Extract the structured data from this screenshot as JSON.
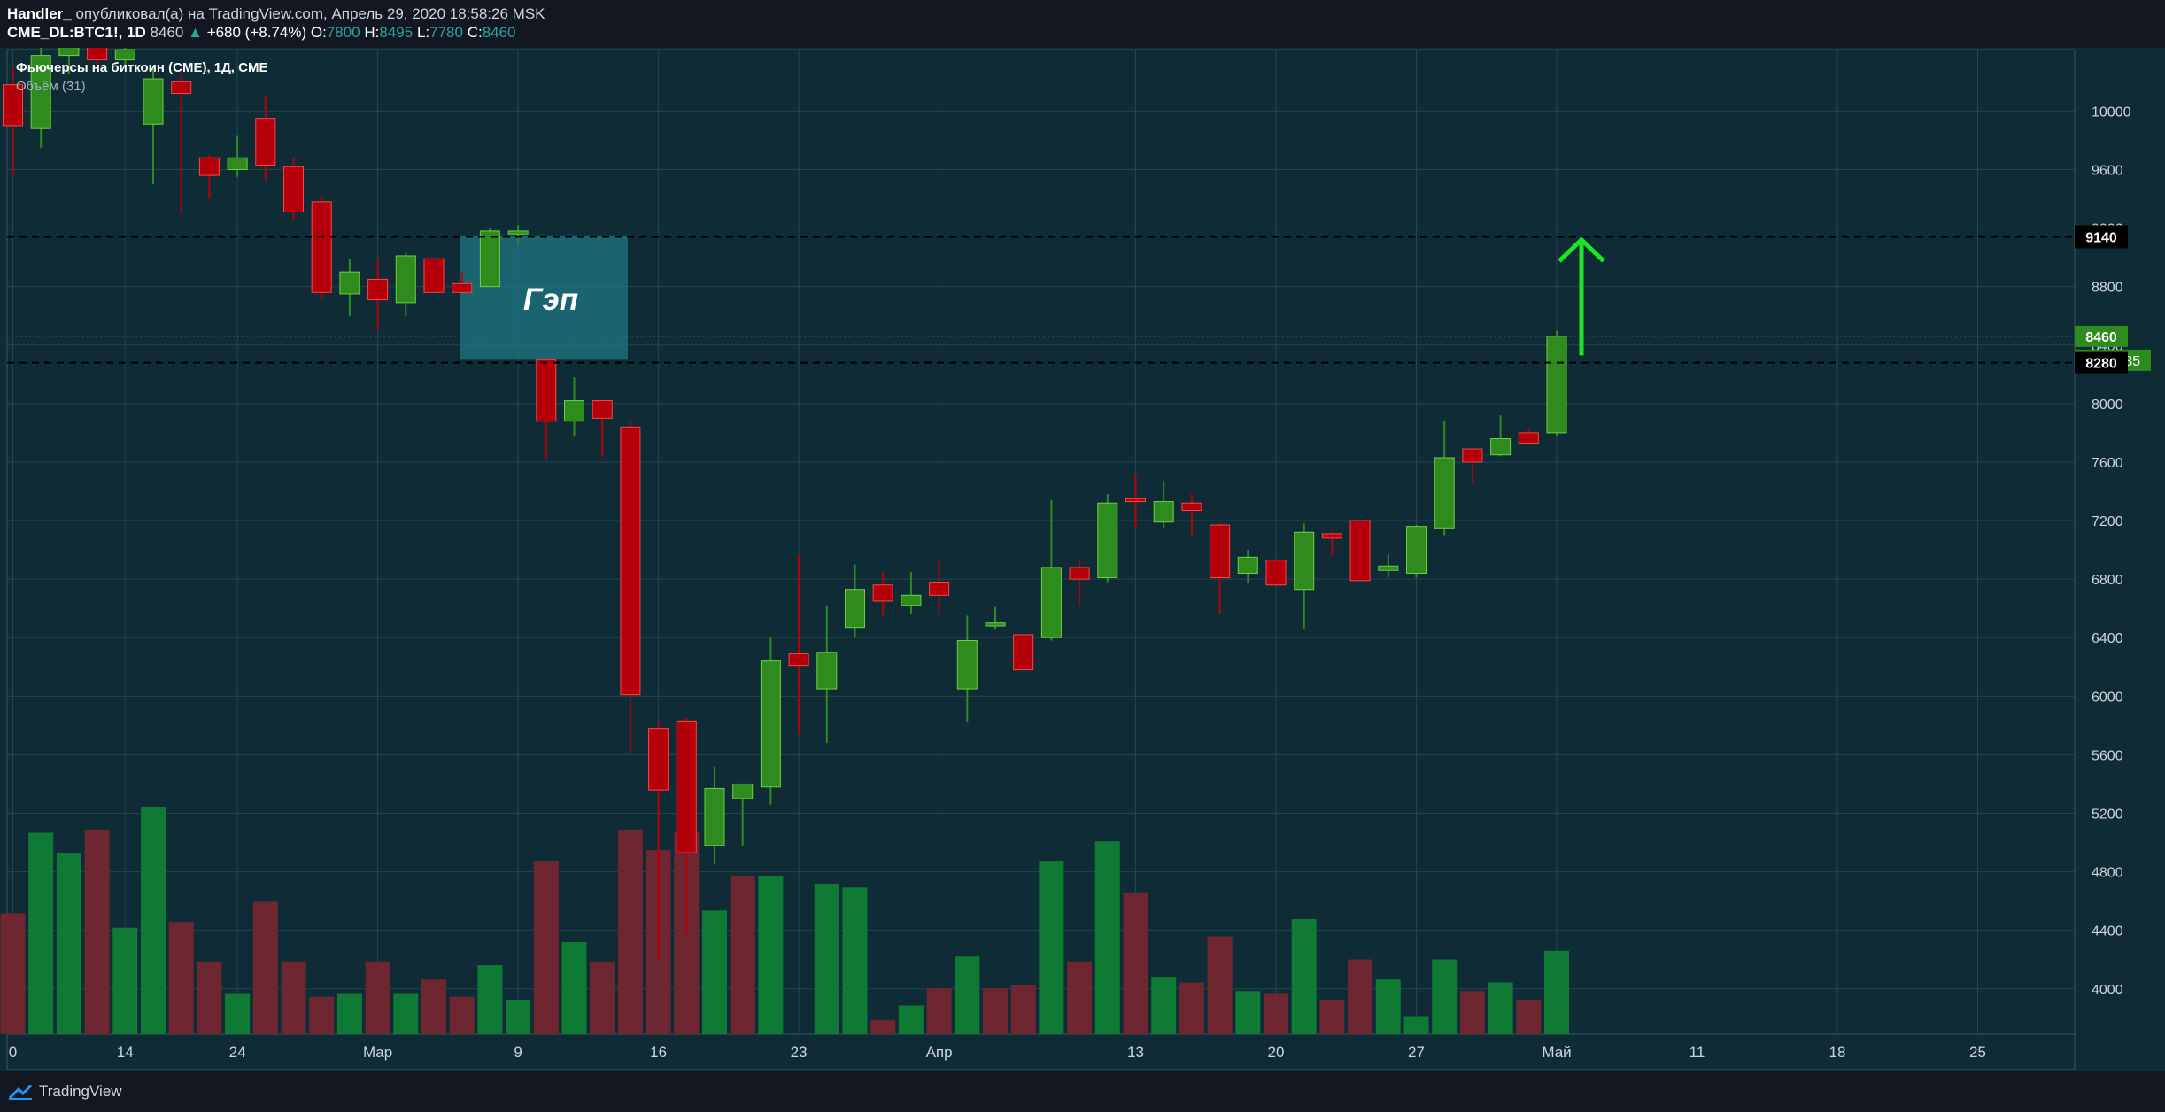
{
  "header": {
    "author": "Handler_",
    "published_text": " опубликовал(а) на TradingView.com, Апрель 29, 2020 18:58:26 MSK",
    "symbol": "CME_DL:BTC1!, 1D",
    "last": "8460",
    "change_arrow": "▲",
    "change": "+680 (+8.74%)",
    "o_label": "O:",
    "o_value": "7800",
    "h_label": "H:",
    "h_value": "8495",
    "l_label": "L:",
    "l_value": "7780",
    "c_label": "C:",
    "c_value": "8460"
  },
  "legend": {
    "main": "Фьючерсы на биткоин (CME), 1Д, CME",
    "volume": "Объём (31)"
  },
  "annotation": {
    "gap_label": "Гэп"
  },
  "price_tags": {
    "level_high": "9140",
    "current": "8460",
    "countdown": "05:01:35",
    "level_low": "8280"
  },
  "footer": {
    "brand": "TradingView"
  },
  "colors": {
    "background": "#0f2c36",
    "up": "#26a69a",
    "candle_up": "#2e8b1e",
    "candle_down": "#b5000b",
    "volume_up": "#0e7a34",
    "volume_down": "#6e2630",
    "arrow": "#1ae625",
    "gap_box": "#1f7a85"
  },
  "chart_data": {
    "type": "candlestick",
    "title": "Фьючерсы на биткоин (CME), 1Д, CME",
    "x_ticks": [
      "0",
      "14",
      "24",
      "Мар",
      "9",
      "16",
      "23",
      "Апр",
      "13",
      "20",
      "27",
      "Май",
      "11",
      "18",
      "25"
    ],
    "y_ticks": [
      4000,
      4400,
      4800,
      5200,
      5600,
      6000,
      6400,
      6800,
      7200,
      7600,
      8000,
      8400,
      8800,
      9200,
      9600,
      10000
    ],
    "ylim": [
      3690,
      10420
    ],
    "candles": [
      {
        "o": 10180,
        "h": 10300,
        "l": 9560,
        "c": 9900
      },
      {
        "o": 9880,
        "h": 10450,
        "l": 9750,
        "c": 10380
      },
      {
        "o": 10380,
        "h": 10500,
        "l": 10250,
        "c": 10450
      },
      {
        "o": 10450,
        "h": 10500,
        "l": 10300,
        "c": 10350
      },
      {
        "o": 10350,
        "h": 10500,
        "l": 10300,
        "c": 10420
      },
      {
        "o": 9910,
        "h": 10300,
        "l": 9500,
        "c": 10220
      },
      {
        "o": 10200,
        "h": 10250,
        "l": 9300,
        "c": 10120
      },
      {
        "o": 9680,
        "h": 9700,
        "l": 9400,
        "c": 9560
      },
      {
        "o": 9600,
        "h": 9830,
        "l": 9550,
        "c": 9680
      },
      {
        "o": 9950,
        "h": 10100,
        "l": 9530,
        "c": 9630
      },
      {
        "o": 9620,
        "h": 9680,
        "l": 9250,
        "c": 9310
      },
      {
        "o": 9380,
        "h": 9420,
        "l": 8710,
        "c": 8760
      },
      {
        "o": 8750,
        "h": 8990,
        "l": 8600,
        "c": 8900
      },
      {
        "o": 8850,
        "h": 8990,
        "l": 8500,
        "c": 8710
      },
      {
        "o": 8690,
        "h": 9030,
        "l": 8600,
        "c": 9010
      },
      {
        "o": 8990,
        "h": 8990,
        "l": 8800,
        "c": 8760
      },
      {
        "o": 8820,
        "h": 8900,
        "l": 8760,
        "c": 8760
      },
      {
        "o": 8800,
        "h": 9200,
        "l": 8790,
        "c": 9180
      },
      {
        "o": 9160,
        "h": 9220,
        "l": 9090,
        "c": 9180
      },
      {
        "o": 8300,
        "h": 8300,
        "l": 7620,
        "c": 7880
      },
      {
        "o": 7880,
        "h": 8180,
        "l": 7780,
        "c": 8020
      },
      {
        "o": 8020,
        "h": 8010,
        "l": 7640,
        "c": 7900
      },
      {
        "o": 7840,
        "h": 7880,
        "l": 5600,
        "c": 6010
      },
      {
        "o": 5780,
        "h": 5820,
        "l": 4200,
        "c": 5360
      },
      {
        "o": 5830,
        "h": 5850,
        "l": 4370,
        "c": 4930
      },
      {
        "o": 4980,
        "h": 5520,
        "l": 4850,
        "c": 5370
      },
      {
        "o": 5300,
        "h": 5400,
        "l": 4980,
        "c": 5400
      },
      {
        "o": 5380,
        "h": 6400,
        "l": 5260,
        "c": 6240
      },
      {
        "o": 6290,
        "h": 6960,
        "l": 5740,
        "c": 6210
      },
      {
        "o": 6050,
        "h": 6620,
        "l": 5680,
        "c": 6300
      },
      {
        "o": 6470,
        "h": 6900,
        "l": 6400,
        "c": 6730
      },
      {
        "o": 6760,
        "h": 6850,
        "l": 6550,
        "c": 6650
      },
      {
        "o": 6620,
        "h": 6850,
        "l": 6560,
        "c": 6690
      },
      {
        "o": 6780,
        "h": 6940,
        "l": 6560,
        "c": 6690
      },
      {
        "o": 6050,
        "h": 6550,
        "l": 5820,
        "c": 6380
      },
      {
        "o": 6480,
        "h": 6610,
        "l": 6460,
        "c": 6500
      },
      {
        "o": 6420,
        "h": 6420,
        "l": 6180,
        "c": 6180
      },
      {
        "o": 6400,
        "h": 7340,
        "l": 6380,
        "c": 6880
      },
      {
        "o": 6880,
        "h": 6940,
        "l": 6620,
        "c": 6800
      },
      {
        "o": 6810,
        "h": 7380,
        "l": 6780,
        "c": 7320
      },
      {
        "o": 7350,
        "h": 7520,
        "l": 7150,
        "c": 7330
      },
      {
        "o": 7190,
        "h": 7470,
        "l": 7150,
        "c": 7330
      },
      {
        "o": 7320,
        "h": 7380,
        "l": 7100,
        "c": 7270
      },
      {
        "o": 7170,
        "h": 7180,
        "l": 6560,
        "c": 6810
      },
      {
        "o": 6840,
        "h": 7000,
        "l": 6770,
        "c": 6950
      },
      {
        "o": 6930,
        "h": 6940,
        "l": 6750,
        "c": 6760
      },
      {
        "o": 6730,
        "h": 7180,
        "l": 6460,
        "c": 7120
      },
      {
        "o": 7110,
        "h": 7120,
        "l": 6960,
        "c": 7080
      },
      {
        "o": 7200,
        "h": 7200,
        "l": 6790,
        "c": 6790
      },
      {
        "o": 6860,
        "h": 6970,
        "l": 6810,
        "c": 6890
      },
      {
        "o": 6840,
        "h": 7170,
        "l": 6810,
        "c": 7160
      },
      {
        "o": 7150,
        "h": 7880,
        "l": 7100,
        "c": 7630
      },
      {
        "o": 7690,
        "h": 7690,
        "l": 7460,
        "c": 7600
      },
      {
        "o": 7650,
        "h": 7920,
        "l": 7640,
        "c": 7760
      },
      {
        "o": 7800,
        "h": 7820,
        "l": 7720,
        "c": 7730
      },
      {
        "o": 7800,
        "h": 8495,
        "l": 7780,
        "c": 8460
      }
    ],
    "volume_heights_relative": [
      0.42,
      0.7,
      0.63,
      0.71,
      0.37,
      0.79,
      0.39,
      0.25,
      0.14,
      0.46,
      0.25,
      0.13,
      0.14,
      0.25,
      0.14,
      0.19,
      0.13,
      0.24,
      0.12,
      0.6,
      0.32,
      0.25,
      0.71,
      0.64,
      0.7,
      0.43,
      0.55,
      0.55,
      0.0,
      0.52,
      0.51,
      0.05,
      0.1,
      0.16,
      0.27,
      0.16,
      0.17,
      0.6,
      0.25,
      0.67,
      0.49,
      0.2,
      0.18,
      0.34,
      0.15,
      0.14,
      0.4,
      0.12,
      0.26,
      0.19,
      0.06,
      0.26,
      0.15,
      0.18,
      0.12,
      0.29
    ],
    "volume_up": [
      false,
      true,
      true,
      false,
      true,
      true,
      false,
      false,
      true,
      false,
      false,
      false,
      true,
      false,
      true,
      false,
      false,
      true,
      true,
      false,
      true,
      false,
      false,
      false,
      false,
      true,
      false,
      true,
      true,
      true,
      true,
      false,
      true,
      false,
      true,
      false,
      false,
      true,
      false,
      true,
      false,
      true,
      false,
      false,
      true,
      false,
      true,
      false,
      false,
      true,
      true,
      true,
      false,
      true,
      false,
      true
    ],
    "horizontal_levels": [
      9140,
      8280
    ],
    "gap_zone": {
      "from": 8300,
      "to": 9150
    },
    "target_arrow": {
      "from": 8330,
      "to": 9120
    }
  }
}
